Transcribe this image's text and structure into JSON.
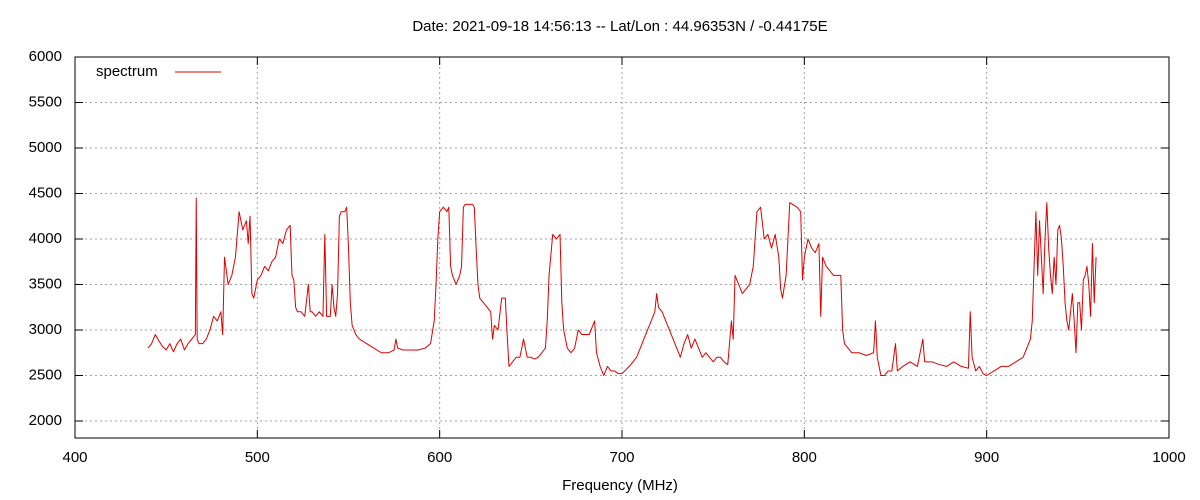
{
  "chart_data": {
    "type": "line",
    "title": "Date: 2021-09-18 14:56:13  --  Lat/Lon : 44.96353N / -0.44175E",
    "x_label": "Frequency (MHz)",
    "xlim": [
      400,
      1000
    ],
    "xticks": [
      400,
      500,
      600,
      700,
      800,
      900,
      1000
    ],
    "ylim": [
      1813,
      6000
    ],
    "yticks": [
      2000,
      2500,
      3000,
      3500,
      4000,
      4500,
      5000,
      5500,
      6000
    ],
    "grid": true,
    "legend": "top-left",
    "x": [
      440,
      442,
      444,
      446,
      448,
      450,
      452,
      454,
      456,
      458,
      460,
      462,
      464,
      466,
      466.5,
      467,
      468,
      470,
      472,
      474,
      476,
      478,
      480,
      481,
      482,
      484,
      486,
      488,
      490,
      492,
      494,
      495,
      496,
      497,
      498,
      500,
      502,
      504,
      506,
      508,
      510,
      512,
      514,
      516,
      518,
      519,
      520,
      521,
      522,
      524,
      526,
      528,
      529,
      530,
      532,
      534,
      536,
      537,
      538,
      540,
      541,
      542,
      543,
      544,
      545,
      546,
      548,
      549,
      550,
      551,
      552,
      554,
      556,
      560,
      564,
      568,
      572,
      575,
      576,
      577,
      580,
      584,
      588,
      592,
      595,
      597,
      598,
      599,
      600,
      602,
      604,
      605,
      606,
      607,
      608,
      609,
      610,
      611,
      612,
      613,
      614,
      618,
      619,
      620,
      621,
      622,
      624,
      626,
      628,
      629,
      630,
      632,
      634,
      636,
      637,
      638,
      640,
      642,
      644,
      646,
      648,
      650,
      652,
      654,
      656,
      658,
      659,
      660,
      662,
      664,
      666,
      667,
      668,
      670,
      672,
      674,
      676,
      678,
      680,
      682,
      684,
      685,
      686,
      688,
      690,
      692,
      694,
      696,
      698,
      700,
      704,
      708,
      712,
      714,
      716,
      718,
      719,
      720,
      722,
      724,
      726,
      728,
      730,
      732,
      734,
      736,
      738,
      740,
      742,
      744,
      746,
      748,
      750,
      752,
      754,
      756,
      758,
      760,
      761,
      762,
      764,
      766,
      768,
      770,
      772,
      774,
      776,
      778,
      780,
      782,
      784,
      786,
      787,
      788,
      790,
      792,
      796,
      798,
      799,
      800,
      802,
      804,
      806,
      808,
      809,
      810,
      812,
      814,
      816,
      818,
      820,
      821,
      822,
      824,
      826,
      830,
      834,
      838,
      839,
      840,
      842,
      844,
      846,
      848,
      850,
      851,
      854,
      858,
      862,
      865,
      866,
      870,
      874,
      878,
      882,
      886,
      890,
      891,
      892,
      894,
      896,
      898,
      900,
      904,
      908,
      912,
      916,
      920,
      922,
      924,
      925,
      926,
      927,
      928,
      929,
      930,
      931,
      932,
      933,
      934,
      935,
      936,
      937,
      938,
      939,
      940,
      941,
      942,
      943,
      944,
      945,
      946,
      947,
      948,
      949,
      950,
      951,
      952,
      953,
      954,
      955,
      956,
      957,
      958,
      959,
      960
    ],
    "series": [
      {
        "name": "spectrum",
        "color": "#dd0000",
        "values": [
          2800,
          2850,
          2950,
          2880,
          2820,
          2780,
          2850,
          2760,
          2850,
          2900,
          2780,
          2850,
          2900,
          2950,
          4450,
          2900,
          2850,
          2850,
          2900,
          3000,
          3150,
          3100,
          3200,
          2950,
          3800,
          3500,
          3600,
          3800,
          4300,
          4100,
          4200,
          3950,
          4250,
          3400,
          3350,
          3550,
          3600,
          3700,
          3650,
          3750,
          3800,
          4000,
          3950,
          4100,
          4150,
          3600,
          3550,
          3250,
          3200,
          3200,
          3150,
          3500,
          3200,
          3200,
          3150,
          3200,
          3150,
          4050,
          3150,
          3150,
          3500,
          3250,
          3150,
          3400,
          4250,
          4300,
          4300,
          4350,
          3900,
          3300,
          3050,
          2950,
          2900,
          2850,
          2800,
          2750,
          2750,
          2780,
          2900,
          2800,
          2780,
          2780,
          2780,
          2800,
          2850,
          3100,
          3500,
          4000,
          4300,
          4350,
          4300,
          4350,
          3700,
          3600,
          3550,
          3500,
          3550,
          3600,
          3700,
          4350,
          4380,
          4380,
          4350,
          3900,
          3500,
          3350,
          3300,
          3250,
          3200,
          2900,
          3050,
          3000,
          3350,
          3350,
          2950,
          2600,
          2650,
          2700,
          2700,
          2900,
          2700,
          2700,
          2680,
          2700,
          2750,
          2800,
          3100,
          3600,
          4050,
          4000,
          4050,
          3300,
          3000,
          2800,
          2750,
          2800,
          3000,
          2950,
          2950,
          2950,
          3050,
          3100,
          2750,
          2600,
          2500,
          2600,
          2550,
          2550,
          2520,
          2520,
          2600,
          2700,
          2900,
          3000,
          3100,
          3200,
          3400,
          3250,
          3200,
          3100,
          3000,
          2900,
          2800,
          2700,
          2850,
          2950,
          2800,
          2900,
          2800,
          2700,
          2750,
          2700,
          2650,
          2700,
          2700,
          2650,
          2620,
          3100,
          2900,
          3600,
          3500,
          3400,
          3450,
          3500,
          3700,
          4300,
          4350,
          4000,
          4050,
          3900,
          4050,
          3800,
          3450,
          3350,
          3600,
          4400,
          4350,
          4300,
          3550,
          3800,
          4000,
          3900,
          3850,
          3950,
          3150,
          3800,
          3700,
          3650,
          3600,
          3600,
          3600,
          3000,
          2850,
          2800,
          2750,
          2750,
          2720,
          2750,
          3100,
          2700,
          2500,
          2500,
          2550,
          2550,
          2850,
          2550,
          2600,
          2650,
          2600,
          2900,
          2650,
          2650,
          2620,
          2600,
          2650,
          2600,
          2580,
          3200,
          2700,
          2550,
          2600,
          2520,
          2500,
          2550,
          2600,
          2600,
          2650,
          2700,
          2800,
          2900,
          3100,
          3700,
          4300,
          3600,
          4200,
          3800,
          3400,
          4000,
          4400,
          3900,
          3600,
          3400,
          3800,
          3500,
          4100,
          4150,
          4000,
          3700,
          3300,
          3100,
          3000,
          3200,
          3400,
          3100,
          2750,
          3300,
          3300,
          3000,
          3550,
          3600,
          3700,
          3500,
          3150,
          3950,
          3300,
          3800
        ]
      }
    ]
  }
}
